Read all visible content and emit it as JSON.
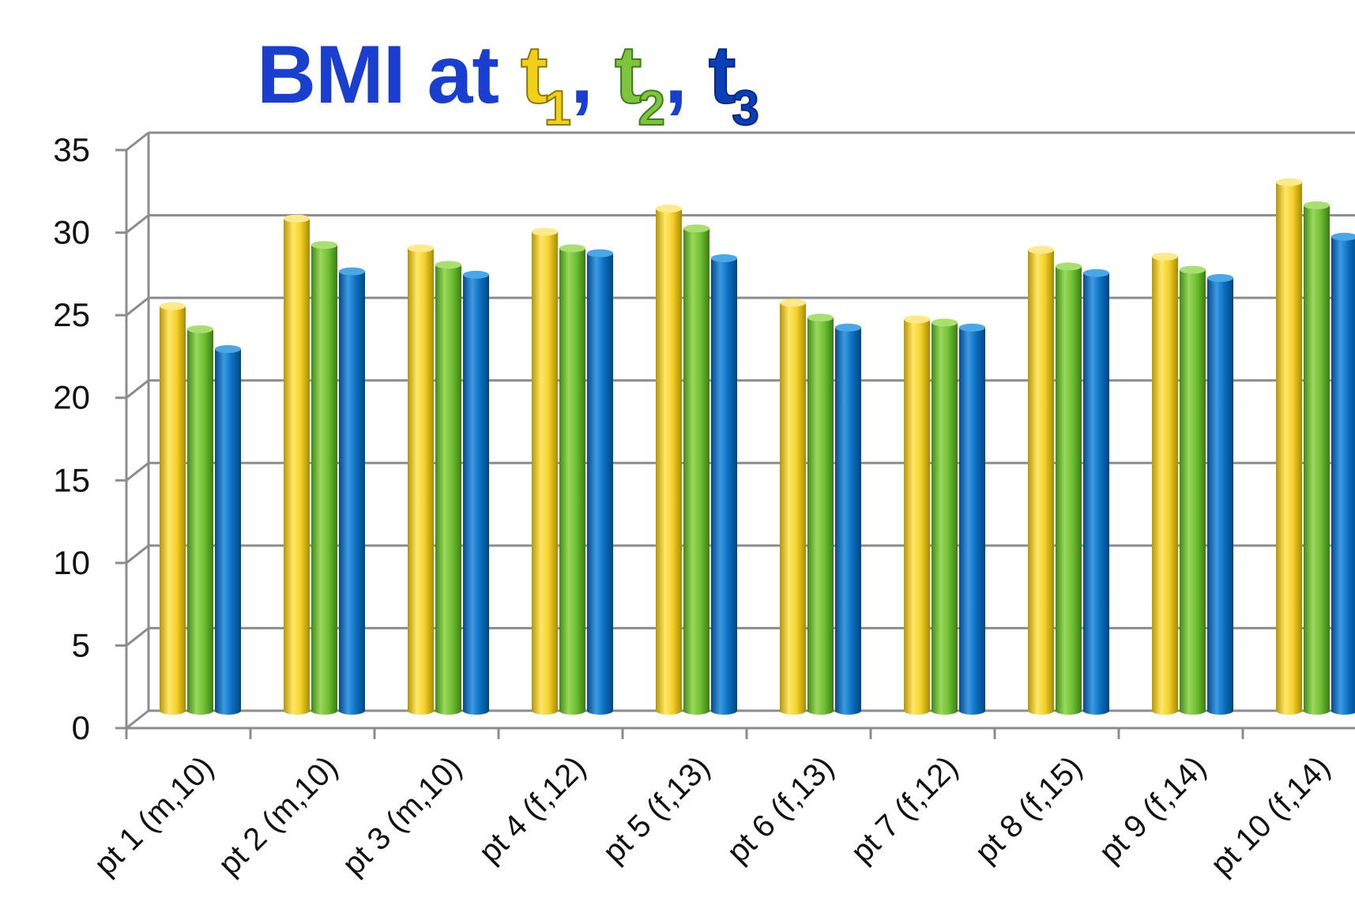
{
  "title": {
    "prefix": "BMI at ",
    "t1": "t",
    "t1_sub": "1",
    "sep1": ", ",
    "t2": "t",
    "t2_sub": "2",
    "sep2": ", ",
    "t3": "t",
    "t3_sub": "3"
  },
  "chart_data": {
    "type": "bar",
    "title": "BMI at t1, t2, t3",
    "xlabel": "",
    "ylabel": "",
    "ylim": [
      0,
      35
    ],
    "yticks": [
      "0",
      "5",
      "10",
      "15",
      "20",
      "25",
      "30",
      "35"
    ],
    "grid": true,
    "categories": [
      "pt 1 (m,10)",
      "pt 2 (m,10)",
      "pt 3 (m,10)",
      "pt 4 (f,12)",
      "pt 5 (f,13)",
      "pt 6 (f,13)",
      "pt 7 (f,12)",
      "pt 8 (f,15)",
      "pt 9 (f,14)",
      "pt 10 (f,14)"
    ],
    "series": [
      {
        "values": [
          24.5,
          29.8,
          28.0,
          29.0,
          30.4,
          24.7,
          23.7,
          27.9,
          27.5,
          32.0
        ],
        "color": "#f4d12a"
      },
      {
        "values": [
          23.1,
          28.2,
          27.0,
          28.0,
          29.2,
          23.8,
          23.5,
          26.9,
          26.7,
          30.6
        ],
        "color": "#6fbf34"
      },
      {
        "values": [
          21.9,
          26.6,
          26.4,
          27.7,
          27.4,
          23.2,
          23.2,
          26.5,
          26.2,
          28.7
        ],
        "color": "#0b6fc2"
      }
    ]
  }
}
